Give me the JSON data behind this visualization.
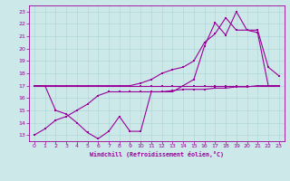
{
  "xlabel": "Windchill (Refroidissement éolien,°C)",
  "background_color": "#cce8e8",
  "line_color": "#990099",
  "xlim": [
    -0.5,
    23.5
  ],
  "ylim": [
    12.5,
    23.5
  ],
  "xticks": [
    0,
    1,
    2,
    3,
    4,
    5,
    6,
    7,
    8,
    9,
    10,
    11,
    12,
    13,
    14,
    15,
    16,
    17,
    18,
    19,
    20,
    21,
    22,
    23
  ],
  "yticks": [
    13,
    14,
    15,
    16,
    17,
    18,
    19,
    20,
    21,
    22,
    23
  ],
  "series1_x": [
    0,
    1,
    2,
    3,
    4,
    5,
    6,
    7,
    8,
    9,
    10,
    11,
    12,
    13,
    14,
    15,
    16,
    17,
    18,
    19,
    20,
    21,
    22,
    23
  ],
  "series1_y": [
    17.0,
    17.0,
    17.0,
    17.0,
    17.0,
    17.0,
    17.0,
    17.0,
    17.0,
    17.0,
    17.0,
    17.0,
    17.0,
    17.0,
    17.0,
    17.0,
    17.0,
    17.0,
    17.0,
    17.0,
    17.0,
    17.0,
    17.0,
    17.0
  ],
  "series2_x": [
    0,
    1,
    2,
    3,
    4,
    5,
    6,
    7,
    8,
    9,
    10,
    11,
    12,
    13,
    14,
    15,
    16,
    17,
    18,
    19,
    20,
    21,
    22,
    23
  ],
  "series2_y": [
    13.0,
    13.5,
    14.2,
    14.5,
    15.0,
    15.5,
    16.2,
    16.5,
    16.5,
    16.5,
    16.5,
    16.5,
    16.5,
    16.6,
    16.7,
    16.7,
    16.7,
    16.8,
    16.8,
    16.9,
    16.9,
    17.0,
    17.0,
    17.0
  ],
  "series3_x": [
    0,
    1,
    2,
    3,
    4,
    5,
    6,
    7,
    8,
    9,
    10,
    11,
    12,
    13,
    14,
    15,
    16,
    17,
    18,
    19,
    20,
    21,
    22,
    23
  ],
  "series3_y": [
    17.0,
    17.0,
    15.0,
    14.7,
    14.0,
    13.2,
    12.7,
    13.3,
    14.5,
    13.3,
    13.3,
    16.5,
    16.5,
    16.5,
    17.0,
    17.5,
    20.2,
    22.1,
    21.1,
    23.0,
    21.5,
    21.5,
    18.5,
    17.8
  ],
  "series4_x": [
    0,
    1,
    2,
    3,
    4,
    5,
    6,
    7,
    8,
    9,
    10,
    11,
    12,
    13,
    14,
    15,
    16,
    17,
    18,
    19,
    20,
    21,
    22,
    23
  ],
  "series4_y": [
    17.0,
    17.0,
    17.0,
    17.0,
    17.0,
    17.0,
    17.0,
    17.0,
    17.0,
    17.0,
    17.2,
    17.5,
    18.0,
    18.3,
    18.5,
    19.0,
    20.5,
    21.2,
    22.5,
    21.5,
    21.5,
    21.3,
    17.0,
    17.0
  ]
}
